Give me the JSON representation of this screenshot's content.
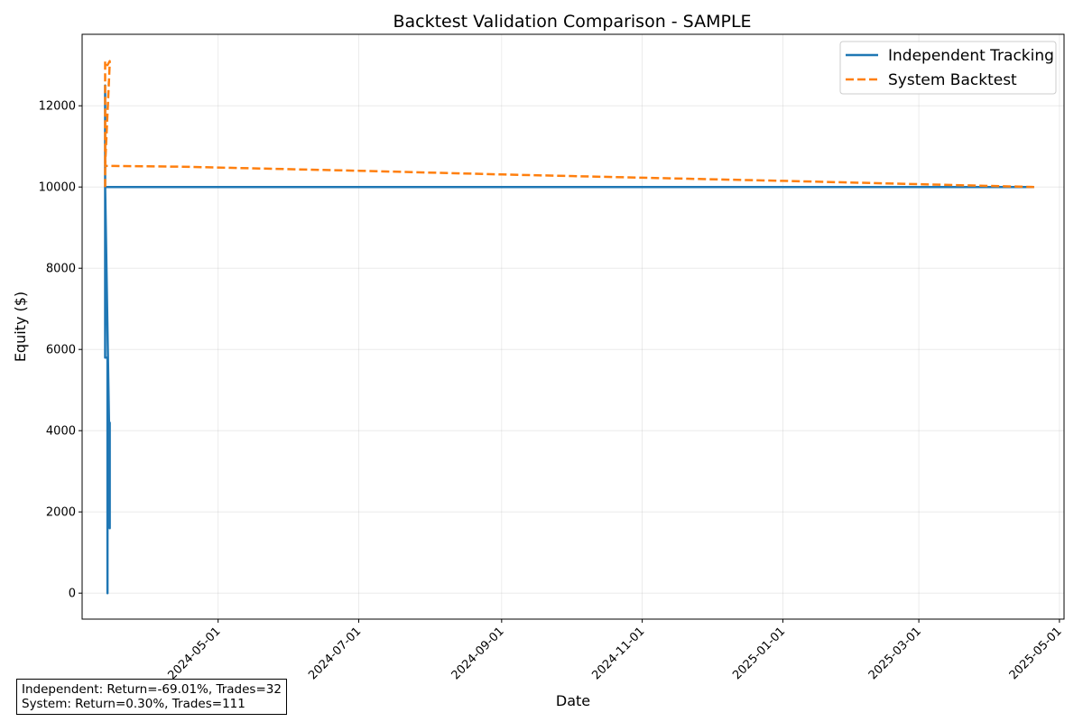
{
  "chart_data": {
    "type": "line",
    "title": "Backtest Validation Comparison - SAMPLE",
    "xlabel": "Date",
    "ylabel": "Equity ($)",
    "x_type": "date",
    "xlim": [
      "2024-03-03",
      "2025-05-03"
    ],
    "ylim": [
      -640,
      13760
    ],
    "x_ticks": [
      "2024-05-01",
      "2024-07-01",
      "2024-09-01",
      "2024-11-01",
      "2025-01-01",
      "2025-03-01",
      "2025-05-01"
    ],
    "y_ticks": [
      0,
      2000,
      4000,
      6000,
      8000,
      10000,
      12000
    ],
    "grid": true,
    "legend_position": "top-right",
    "series": [
      {
        "name": "Independent Tracking",
        "color": "#1f77b4",
        "style": "solid",
        "points": [
          [
            "2024-03-13",
            10000
          ],
          [
            "2024-03-13",
            12500
          ],
          [
            "2024-03-13",
            9600
          ],
          [
            "2024-03-13",
            10500
          ],
          [
            "2024-03-13",
            8400
          ],
          [
            "2024-03-13",
            7400
          ],
          [
            "2024-03-13",
            8300
          ],
          [
            "2024-03-13",
            5800
          ],
          [
            "2024-03-14",
            5800
          ],
          [
            "2024-03-14",
            4700
          ],
          [
            "2024-03-14",
            5200
          ],
          [
            "2024-03-14",
            0
          ],
          [
            "2024-03-14",
            1600
          ],
          [
            "2024-03-15",
            4200
          ],
          [
            "2024-03-15",
            1600
          ],
          [
            "2024-03-15",
            3500
          ],
          [
            "2024-03-15",
            2600
          ],
          [
            "2024-03-15",
            3100
          ],
          [
            "2024-03-13",
            10000
          ],
          [
            "2025-04-20",
            10000
          ]
        ]
      },
      {
        "name": "System Backtest",
        "color": "#ff7f0e",
        "style": "dashed",
        "points": [
          [
            "2024-03-13",
            10000
          ],
          [
            "2024-03-13",
            13100
          ],
          [
            "2024-03-14",
            13000
          ],
          [
            "2024-03-15",
            13100
          ],
          [
            "2024-03-15",
            13050
          ],
          [
            "2024-03-13",
            10520
          ],
          [
            "2024-04-15",
            10500
          ],
          [
            "2024-07-01",
            10400
          ],
          [
            "2024-09-01",
            10310
          ],
          [
            "2024-11-01",
            10230
          ],
          [
            "2025-01-01",
            10150
          ],
          [
            "2025-03-01",
            10070
          ],
          [
            "2025-04-20",
            10000
          ]
        ]
      }
    ]
  },
  "stats": {
    "independent": "Independent: Return=-69.01%, Trades=32",
    "system": "System: Return=0.30%, Trades=111"
  }
}
